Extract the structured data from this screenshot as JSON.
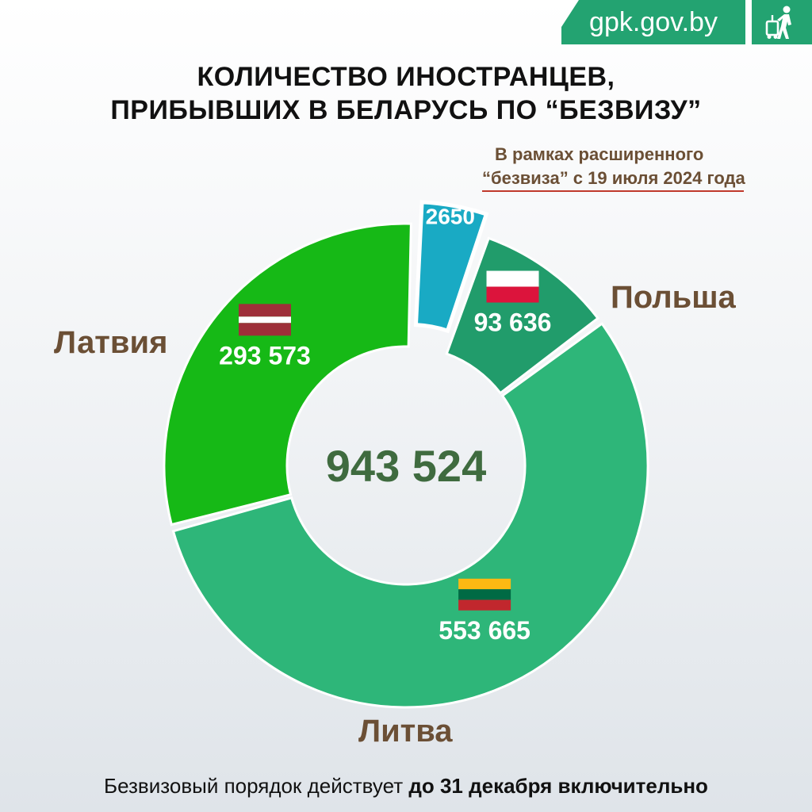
{
  "site": "gpk.gov.by",
  "logo_icon": "traveler-with-suitcase-icon",
  "title_line1": "КОЛИЧЕСТВО ИНОСТРАНЦЕВ,",
  "title_line2": "ПРИБЫВШИХ В БЕЛАРУСЬ ПО “БЕЗВИЗУ”",
  "note_line1": "В рамках расширенного",
  "note_line2": "“безвиза” с 19 июля 2024 года",
  "footer_regular": "Безвизовый порядок действует",
  "footer_bold": "до 31 декабря включительно",
  "chart_data": {
    "type": "pie",
    "total_label": "943 524",
    "slices": [
      {
        "name": "Латвия",
        "value": 293573,
        "label": "293 573",
        "color": "#16b916",
        "flag": "latvia"
      },
      {
        "name": "",
        "value": 2650,
        "label": "2650",
        "color": "#19aac4",
        "flag": "",
        "exploded": true
      },
      {
        "name": "Польша",
        "value": 93636,
        "label": "93 636",
        "color": "#219c6b",
        "flag": "poland"
      },
      {
        "name": "Литва",
        "value": 553665,
        "label": "553 665",
        "color": "#2eb679",
        "flag": "lithuania"
      }
    ]
  }
}
